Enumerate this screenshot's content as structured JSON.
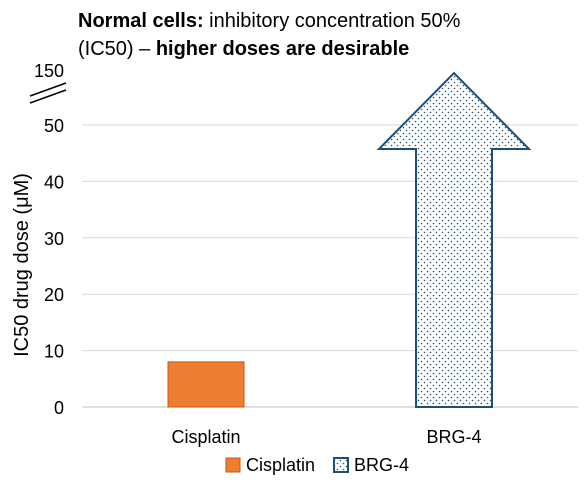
{
  "chart_data": {
    "type": "bar",
    "title_parts": [
      {
        "text": "Normal cells:",
        "bold": true
      },
      {
        "text": " inhibitory concentration 50%",
        "bold": false
      },
      {
        "text": "(IC50) – ",
        "bold": false,
        "newline": true
      },
      {
        "text": "higher doses are desirable",
        "bold": true
      }
    ],
    "xlabel": "",
    "ylabel": "IC50 drug dose (μM)",
    "categories": [
      "Cisplatin",
      "BRG-4"
    ],
    "y_ticks": [
      0,
      10,
      20,
      30,
      40,
      50
    ],
    "y_break_tick": 150,
    "ylim": [
      0,
      50
    ],
    "axis_break": true,
    "grid": true,
    "series": [
      {
        "name": "Cisplatin",
        "values": [
          8,
          null
        ],
        "color": "#ED7D31",
        "style": "solid bar"
      },
      {
        "name": "BRG-4",
        "values": [
          null,
          150
        ],
        "color": "#1F4E79",
        "style": "dotted up-arrow (exceeds axis break)"
      }
    ],
    "legend_position": "bottom"
  }
}
